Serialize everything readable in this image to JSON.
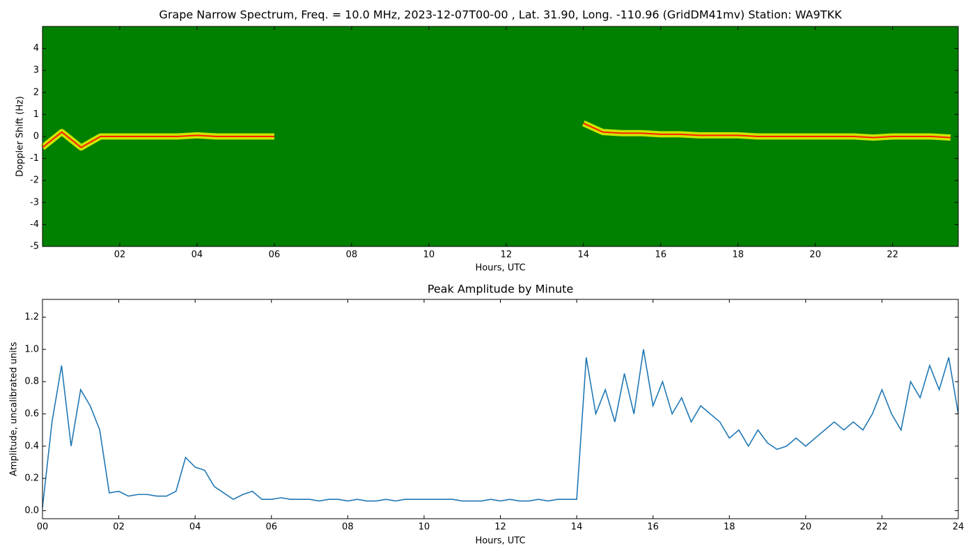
{
  "chart_data": [
    {
      "type": "spectrogram",
      "title": "Grape Narrow Spectrum, Freq. = 10.0 MHz, 2023-12-07T00-00 , Lat.  31.90, Long. -110.96 (GridDM41mv) Station: WA9TKK",
      "xlabel": "Hours, UTC",
      "ylabel": "Doppler Shift (Hz)",
      "background": "#008000",
      "color": "#ffff00",
      "core_color": "#ff2000",
      "x": [
        0,
        0.5,
        1,
        1.5,
        2,
        2.5,
        3,
        3.5,
        4,
        4.5,
        5,
        5.5,
        6,
        6.5,
        7,
        7.5,
        8,
        8.5,
        9,
        9.5,
        10,
        10.5,
        11,
        11.5,
        12,
        12.5,
        13,
        13.5,
        14,
        14.5,
        15,
        15.5,
        16,
        16.5,
        17,
        17.5,
        18,
        18.5,
        19,
        19.5,
        20,
        20.5,
        21,
        21.5,
        22,
        22.5,
        23,
        23.5
      ],
      "values": [
        -0.5,
        0.2,
        -0.5,
        0,
        0,
        0,
        0,
        0,
        0.05,
        0,
        0,
        0,
        0,
        null,
        null,
        null,
        null,
        null,
        null,
        null,
        null,
        null,
        null,
        null,
        null,
        null,
        null,
        null,
        0.6,
        0.2,
        0.15,
        0.15,
        0.1,
        0.1,
        0.05,
        0.05,
        0.05,
        0,
        0,
        0,
        0,
        0,
        0,
        -0.05,
        0,
        0,
        0,
        -0.05
      ],
      "xlim": [
        0,
        23.7
      ],
      "ylim": [
        -5,
        5
      ],
      "xticks": [
        {
          "value": 2,
          "label": "02"
        },
        {
          "value": 4,
          "label": "04"
        },
        {
          "value": 6,
          "label": "06"
        },
        {
          "value": 8,
          "label": "08"
        },
        {
          "value": 10,
          "label": "10"
        },
        {
          "value": 12,
          "label": "12"
        },
        {
          "value": 14,
          "label": "14"
        },
        {
          "value": 16,
          "label": "16"
        },
        {
          "value": 18,
          "label": "18"
        },
        {
          "value": 20,
          "label": "20"
        },
        {
          "value": 22,
          "label": "22"
        }
      ],
      "yticks": [
        -5,
        -4,
        -3,
        -2,
        -1,
        0,
        1,
        2,
        3,
        4
      ]
    },
    {
      "type": "line",
      "title": "Peak Amplitude by Minute",
      "xlabel": "Hours, UTC",
      "ylabel": "Amplitude, uncalibrated units",
      "color": "#1f77b4",
      "x": [
        0,
        0.25,
        0.5,
        0.75,
        1,
        1.25,
        1.5,
        1.75,
        2,
        2.25,
        2.5,
        2.75,
        3,
        3.25,
        3.5,
        3.75,
        4,
        4.25,
        4.5,
        4.75,
        5,
        5.25,
        5.5,
        5.75,
        6,
        6.25,
        6.5,
        6.75,
        7,
        7.25,
        7.5,
        7.75,
        8,
        8.25,
        8.5,
        8.75,
        9,
        9.25,
        9.5,
        9.75,
        10,
        10.25,
        10.5,
        10.75,
        11,
        11.25,
        11.5,
        11.75,
        12,
        12.25,
        12.5,
        12.75,
        13,
        13.25,
        13.5,
        13.75,
        14,
        14.25,
        14.5,
        14.75,
        15,
        15.25,
        15.5,
        15.75,
        16,
        16.25,
        16.5,
        16.75,
        17,
        17.25,
        17.5,
        17.75,
        18,
        18.25,
        18.5,
        18.75,
        19,
        19.25,
        19.5,
        19.75,
        20,
        20.25,
        20.5,
        20.75,
        21,
        21.25,
        21.5,
        21.75,
        22,
        22.25,
        22.5,
        22.75,
        23,
        23.25,
        23.5,
        23.75,
        24
      ],
      "values": [
        0.02,
        0.55,
        0.9,
        0.4,
        0.75,
        0.65,
        0.5,
        0.11,
        0.12,
        0.09,
        0.1,
        0.1,
        0.09,
        0.09,
        0.12,
        0.33,
        0.27,
        0.25,
        0.15,
        0.11,
        0.07,
        0.1,
        0.12,
        0.07,
        0.07,
        0.08,
        0.07,
        0.07,
        0.07,
        0.06,
        0.07,
        0.07,
        0.06,
        0.07,
        0.06,
        0.06,
        0.07,
        0.06,
        0.07,
        0.07,
        0.07,
        0.07,
        0.07,
        0.07,
        0.06,
        0.06,
        0.06,
        0.07,
        0.06,
        0.07,
        0.06,
        0.06,
        0.07,
        0.06,
        0.07,
        0.07,
        0.07,
        0.95,
        0.6,
        0.75,
        0.55,
        0.85,
        0.6,
        1.0,
        0.65,
        0.8,
        0.6,
        0.7,
        0.55,
        0.65,
        0.6,
        0.55,
        0.45,
        0.5,
        0.4,
        0.5,
        0.42,
        0.38,
        0.4,
        0.45,
        0.4,
        0.45,
        0.5,
        0.55,
        0.5,
        0.55,
        0.5,
        0.6,
        0.75,
        0.6,
        0.5,
        0.8,
        0.7,
        0.9,
        0.75,
        0.95,
        0.6
      ],
      "xlim": [
        0,
        24
      ],
      "ylim": [
        -0.05,
        1.31
      ],
      "xticks": [
        {
          "value": 0,
          "label": "00"
        },
        {
          "value": 2,
          "label": "02"
        },
        {
          "value": 4,
          "label": "04"
        },
        {
          "value": 6,
          "label": "06"
        },
        {
          "value": 8,
          "label": "08"
        },
        {
          "value": 10,
          "label": "10"
        },
        {
          "value": 12,
          "label": "12"
        },
        {
          "value": 14,
          "label": "14"
        },
        {
          "value": 16,
          "label": "16"
        },
        {
          "value": 18,
          "label": "18"
        },
        {
          "value": 20,
          "label": "20"
        },
        {
          "value": 22,
          "label": "22"
        },
        {
          "value": 24,
          "label": "24"
        }
      ],
      "yticks": [
        {
          "value": 0,
          "label": "0.0"
        },
        0.2,
        0.4,
        0.6,
        0.8,
        {
          "value": 1,
          "label": "1.0"
        },
        1.2
      ]
    }
  ]
}
